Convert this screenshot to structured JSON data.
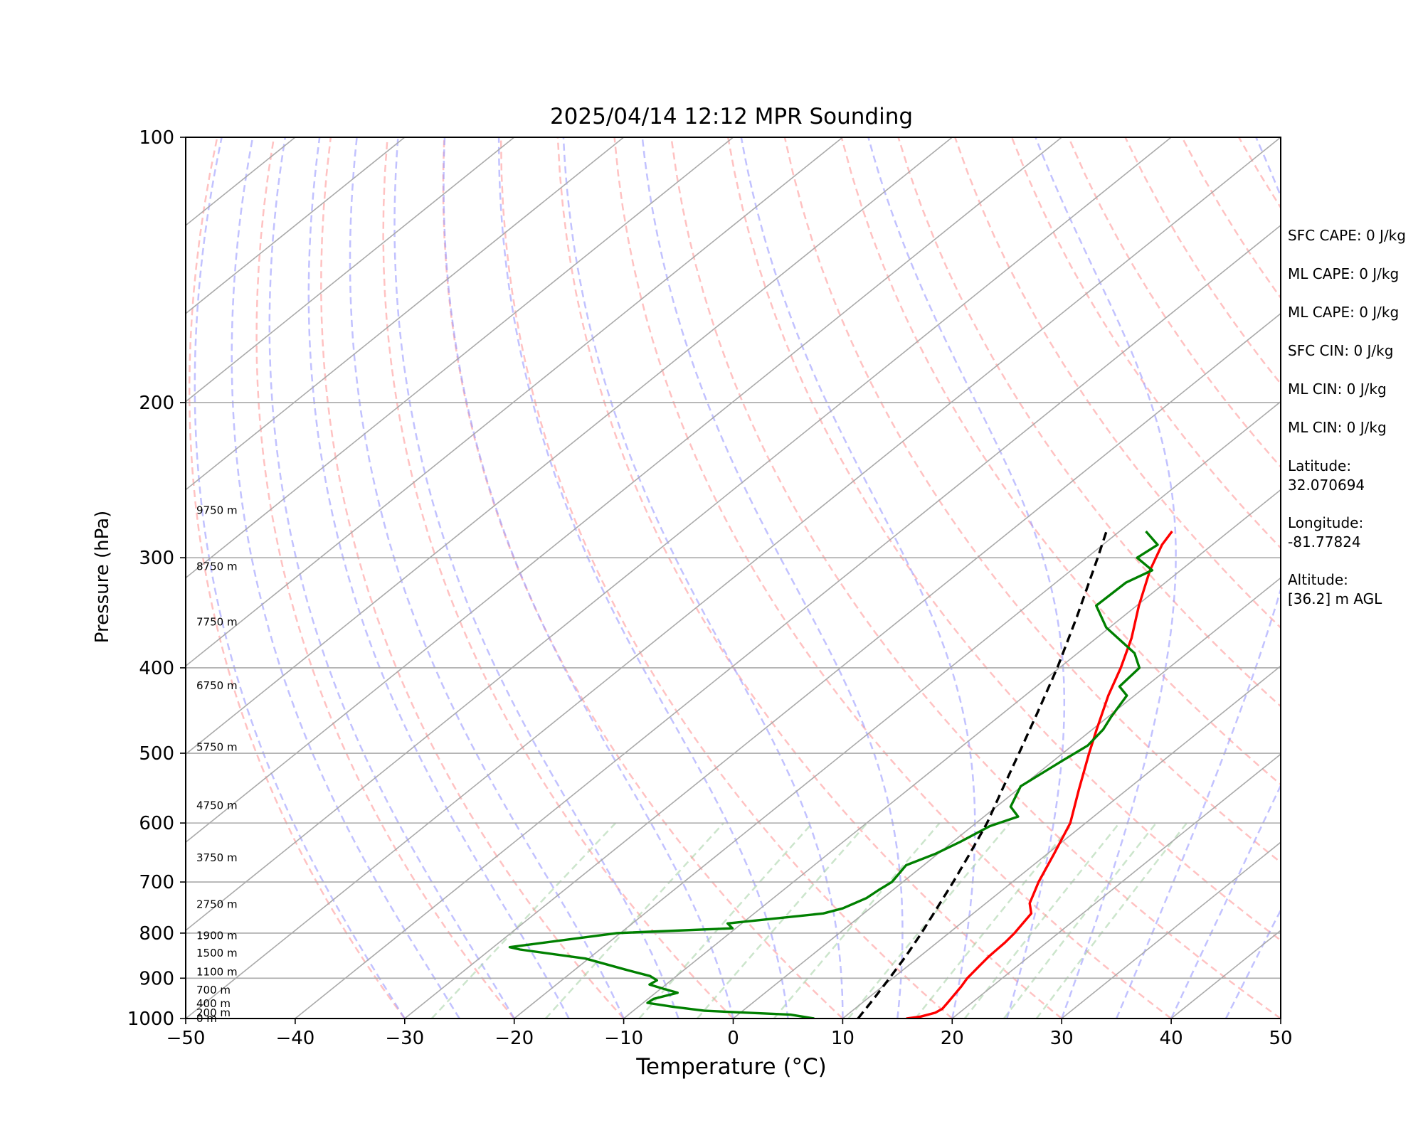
{
  "chart_data": {
    "type": "line",
    "chart_kind": "skew-t log-p sounding",
    "title": "2025/04/14 12:12 MPR Sounding",
    "xlabel": "Temperature (°C)",
    "ylabel": "Pressure (hPa)",
    "xlim": [
      -50,
      50
    ],
    "ylim": [
      1000,
      100
    ],
    "y_scale": "log",
    "x_ticks": [
      "−50",
      "−40",
      "−30",
      "−20",
      "−10",
      "0",
      "10",
      "20",
      "30",
      "40",
      "50"
    ],
    "y_ticks": [
      1000,
      900,
      800,
      700,
      600,
      500,
      400,
      300,
      200,
      100
    ],
    "grid": "horizontal at pressure ticks",
    "series": [
      {
        "key": "temperature",
        "color": "#ff0000",
        "points": [
          [
            1000,
            15.8
          ],
          [
            995,
            16.9
          ],
          [
            985,
            17.8
          ],
          [
            975,
            18.0
          ],
          [
            960,
            17.8
          ],
          [
            940,
            17.5
          ],
          [
            920,
            17.2
          ],
          [
            900,
            16.8
          ],
          [
            870,
            16.5
          ],
          [
            850,
            16.3
          ],
          [
            820,
            16.2
          ],
          [
            800,
            16.0
          ],
          [
            760,
            15.3
          ],
          [
            740,
            14.0
          ],
          [
            700,
            12.4
          ],
          [
            650,
            10.6
          ],
          [
            600,
            8.6
          ],
          [
            550,
            5.6
          ],
          [
            500,
            2.4
          ],
          [
            470,
            0.4
          ],
          [
            430,
            -2.4
          ],
          [
            400,
            -4.4
          ],
          [
            370,
            -6.8
          ],
          [
            340,
            -9.8
          ],
          [
            310,
            -12.8
          ],
          [
            290,
            -14.6
          ],
          [
            280,
            -15.2
          ]
        ]
      },
      {
        "key": "dewpoint",
        "color": "#008000",
        "points": [
          [
            1000,
            7.4
          ],
          [
            990,
            4.8
          ],
          [
            980,
            -3.5
          ],
          [
            970,
            -6.8
          ],
          [
            960,
            -9.6
          ],
          [
            950,
            -9.5
          ],
          [
            935,
            -8.0
          ],
          [
            925,
            -9.8
          ],
          [
            915,
            -11.5
          ],
          [
            905,
            -11.3
          ],
          [
            895,
            -12.4
          ],
          [
            880,
            -15.4
          ],
          [
            855,
            -20.3
          ],
          [
            835,
            -27.3
          ],
          [
            830,
            -28.5
          ],
          [
            800,
            -20.3
          ],
          [
            790,
            -10.3
          ],
          [
            780,
            -11.3
          ],
          [
            760,
            -3.7
          ],
          [
            750,
            -2.5
          ],
          [
            730,
            -1.5
          ],
          [
            715,
            -1.3
          ],
          [
            700,
            -1.0
          ],
          [
            670,
            -1.6
          ],
          [
            650,
            -0.2
          ],
          [
            630,
            0.7
          ],
          [
            605,
            1.6
          ],
          [
            590,
            3.1
          ],
          [
            575,
            1.3
          ],
          [
            545,
            -0.1
          ],
          [
            510,
            0.8
          ],
          [
            490,
            1.4
          ],
          [
            470,
            1.0
          ],
          [
            455,
            0.3
          ],
          [
            430,
            -0.7
          ],
          [
            420,
            -2.4
          ],
          [
            400,
            -2.7
          ],
          [
            385,
            -4.8
          ],
          [
            360,
            -10.3
          ],
          [
            340,
            -13.7
          ],
          [
            320,
            -13.6
          ],
          [
            310,
            -12.6
          ],
          [
            300,
            -15.4
          ],
          [
            290,
            -15.0
          ],
          [
            280,
            -17.6
          ]
        ]
      },
      {
        "key": "parcel",
        "color": "#000000",
        "style": "dashed",
        "points": [
          [
            1000,
            11.4
          ],
          [
            950,
            10.6
          ],
          [
            900,
            9.7
          ],
          [
            850,
            8.7
          ],
          [
            800,
            7.5
          ],
          [
            750,
            6.1
          ],
          [
            700,
            4.6
          ],
          [
            650,
            2.9
          ],
          [
            600,
            1.0
          ],
          [
            550,
            -1.4
          ],
          [
            500,
            -4.0
          ],
          [
            450,
            -6.9
          ],
          [
            400,
            -10.2
          ],
          [
            350,
            -14.2
          ],
          [
            300,
            -19.0
          ],
          [
            280,
            -21.2
          ]
        ]
      }
    ],
    "height_labels": [
      {
        "p": 1000,
        "text": "0 m"
      },
      {
        "p": 985,
        "text": "200 m"
      },
      {
        "p": 962,
        "text": "400 m"
      },
      {
        "p": 928,
        "text": "700 m"
      },
      {
        "p": 885,
        "text": "1100 m"
      },
      {
        "p": 843,
        "text": "1500 m"
      },
      {
        "p": 805,
        "text": "1900 m"
      },
      {
        "p": 742,
        "text": "2750 m"
      },
      {
        "p": 657,
        "text": "3750 m"
      },
      {
        "p": 573,
        "text": "4750 m"
      },
      {
        "p": 492,
        "text": "5750 m"
      },
      {
        "p": 419,
        "text": "6750 m"
      },
      {
        "p": 355,
        "text": "7750 m"
      },
      {
        "p": 307,
        "text": "8750 m"
      },
      {
        "p": 265,
        "text": "9750 m"
      }
    ],
    "background_lines": {
      "isotherms": {
        "color": "#aaaaaa",
        "style": "solid"
      },
      "dry_adiabats": {
        "color": "#ff9999",
        "style": "dashed"
      },
      "moist_adiabats": {
        "color": "#9999ff",
        "style": "dashed"
      },
      "mixing_ratio": {
        "color": "#99cc99",
        "style": "dashed"
      }
    }
  },
  "stats": [
    "SFC CAPE: 0 J/kg",
    "ML CAPE: 0 J/kg",
    "ML CAPE: 0 J/kg",
    "SFC CIN: 0 J/kg",
    "ML CIN: 0 J/kg",
    "ML CIN: 0 J/kg"
  ],
  "location": {
    "lat_label": "Latitude:",
    "lat_value": "32.070694",
    "lon_label": "Longitude:",
    "lon_value": "-81.77824",
    "alt_label": "Altitude:",
    "alt_value": "[36.2] m AGL"
  }
}
